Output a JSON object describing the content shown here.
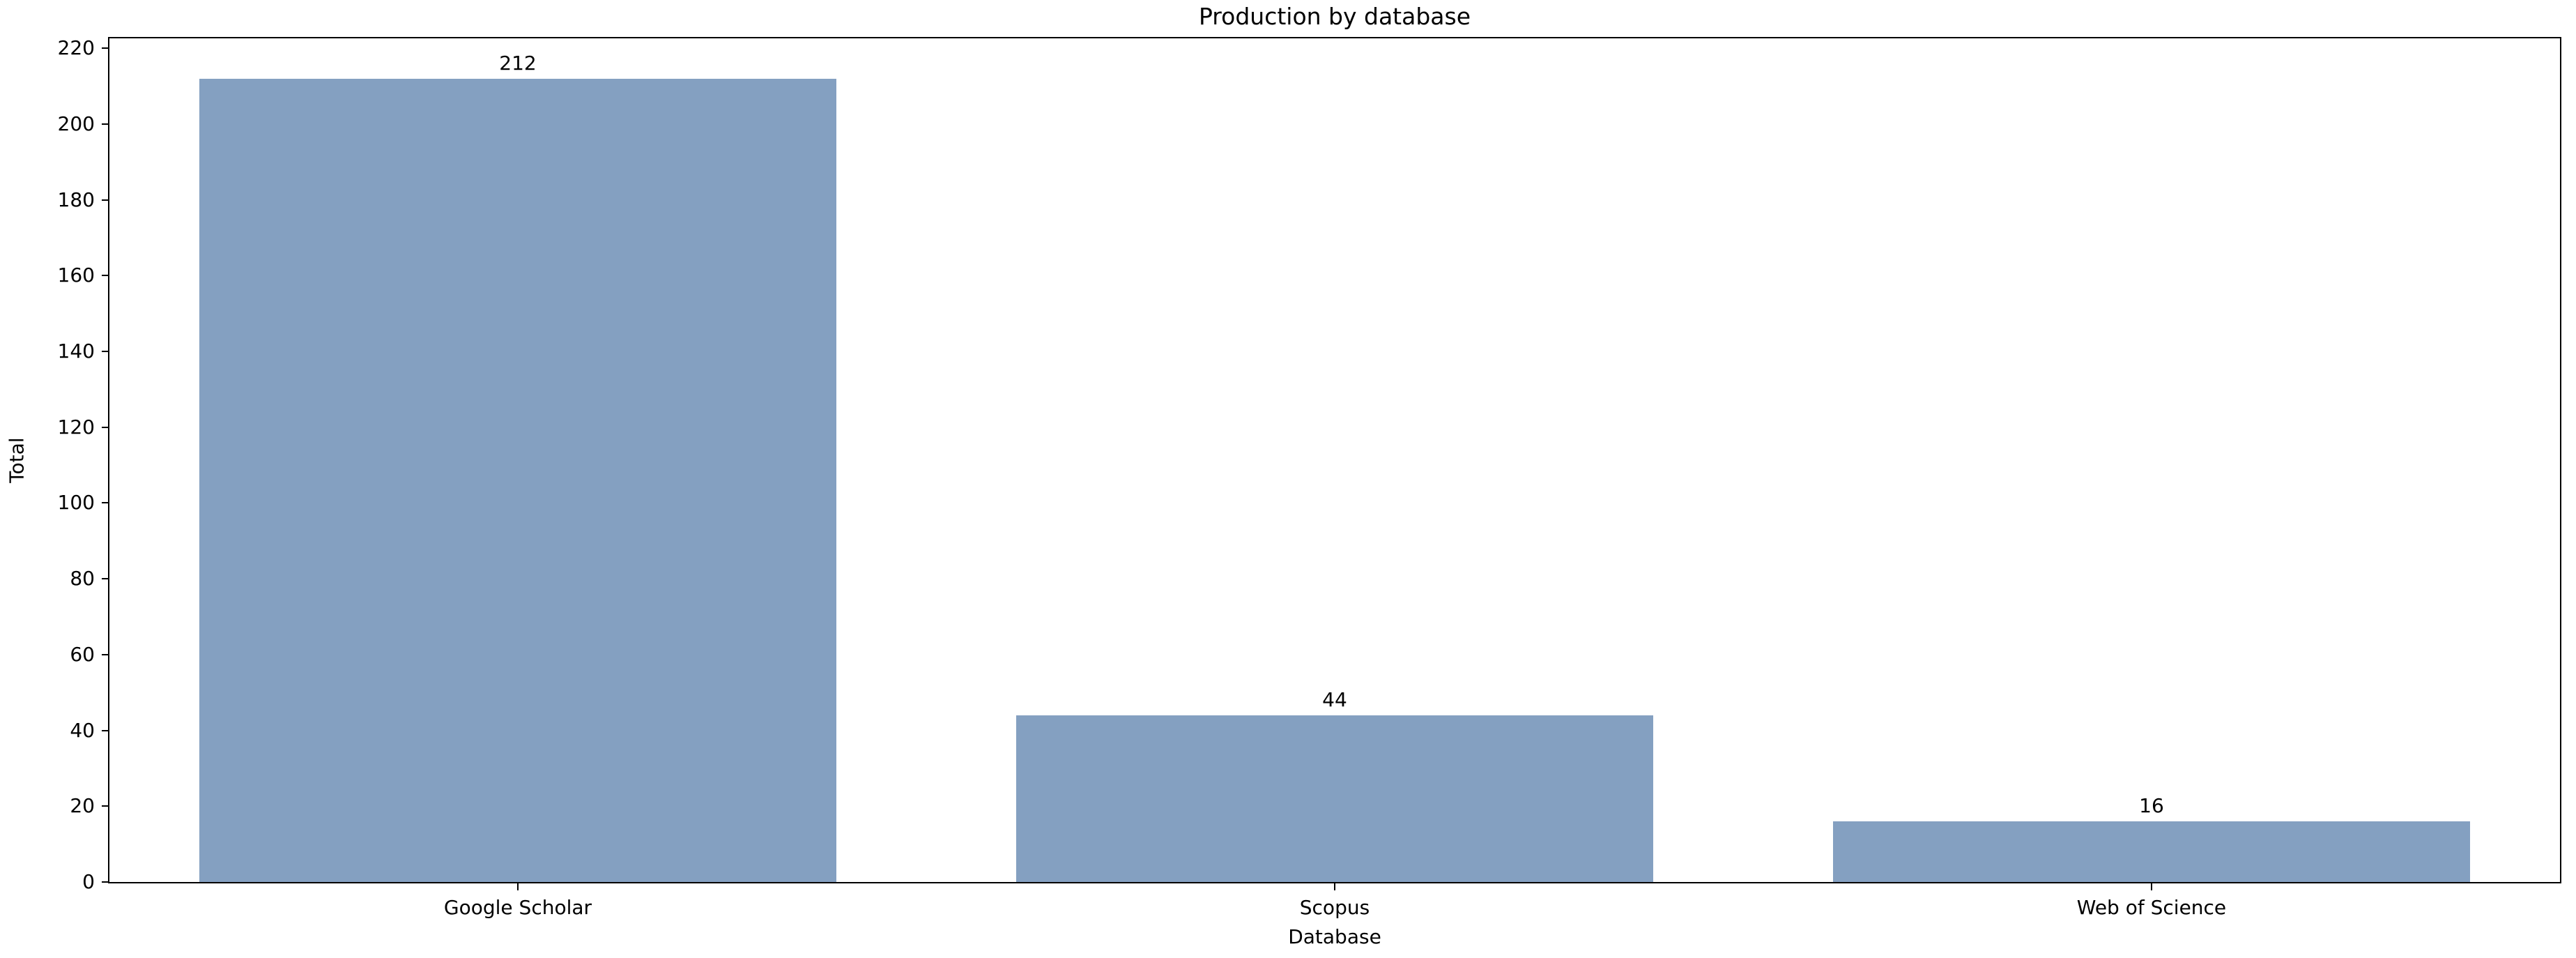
{
  "chart_data": {
    "type": "bar",
    "title": "Production by database",
    "xlabel": "Database",
    "ylabel": "Total",
    "categories": [
      "Google Scholar",
      "Scopus",
      "Web of Science"
    ],
    "values": [
      212,
      44,
      16
    ],
    "bar_labels": [
      "212",
      "44",
      "16"
    ],
    "ylim": [
      0,
      222.6
    ],
    "yticks": [
      0,
      20,
      40,
      60,
      80,
      100,
      120,
      140,
      160,
      180,
      200,
      220
    ],
    "grid": false,
    "legend": null,
    "bar_color": "#84a0c1",
    "spine_color": "#000000",
    "text_color": "#000000",
    "background_color": "#ffffff"
  }
}
